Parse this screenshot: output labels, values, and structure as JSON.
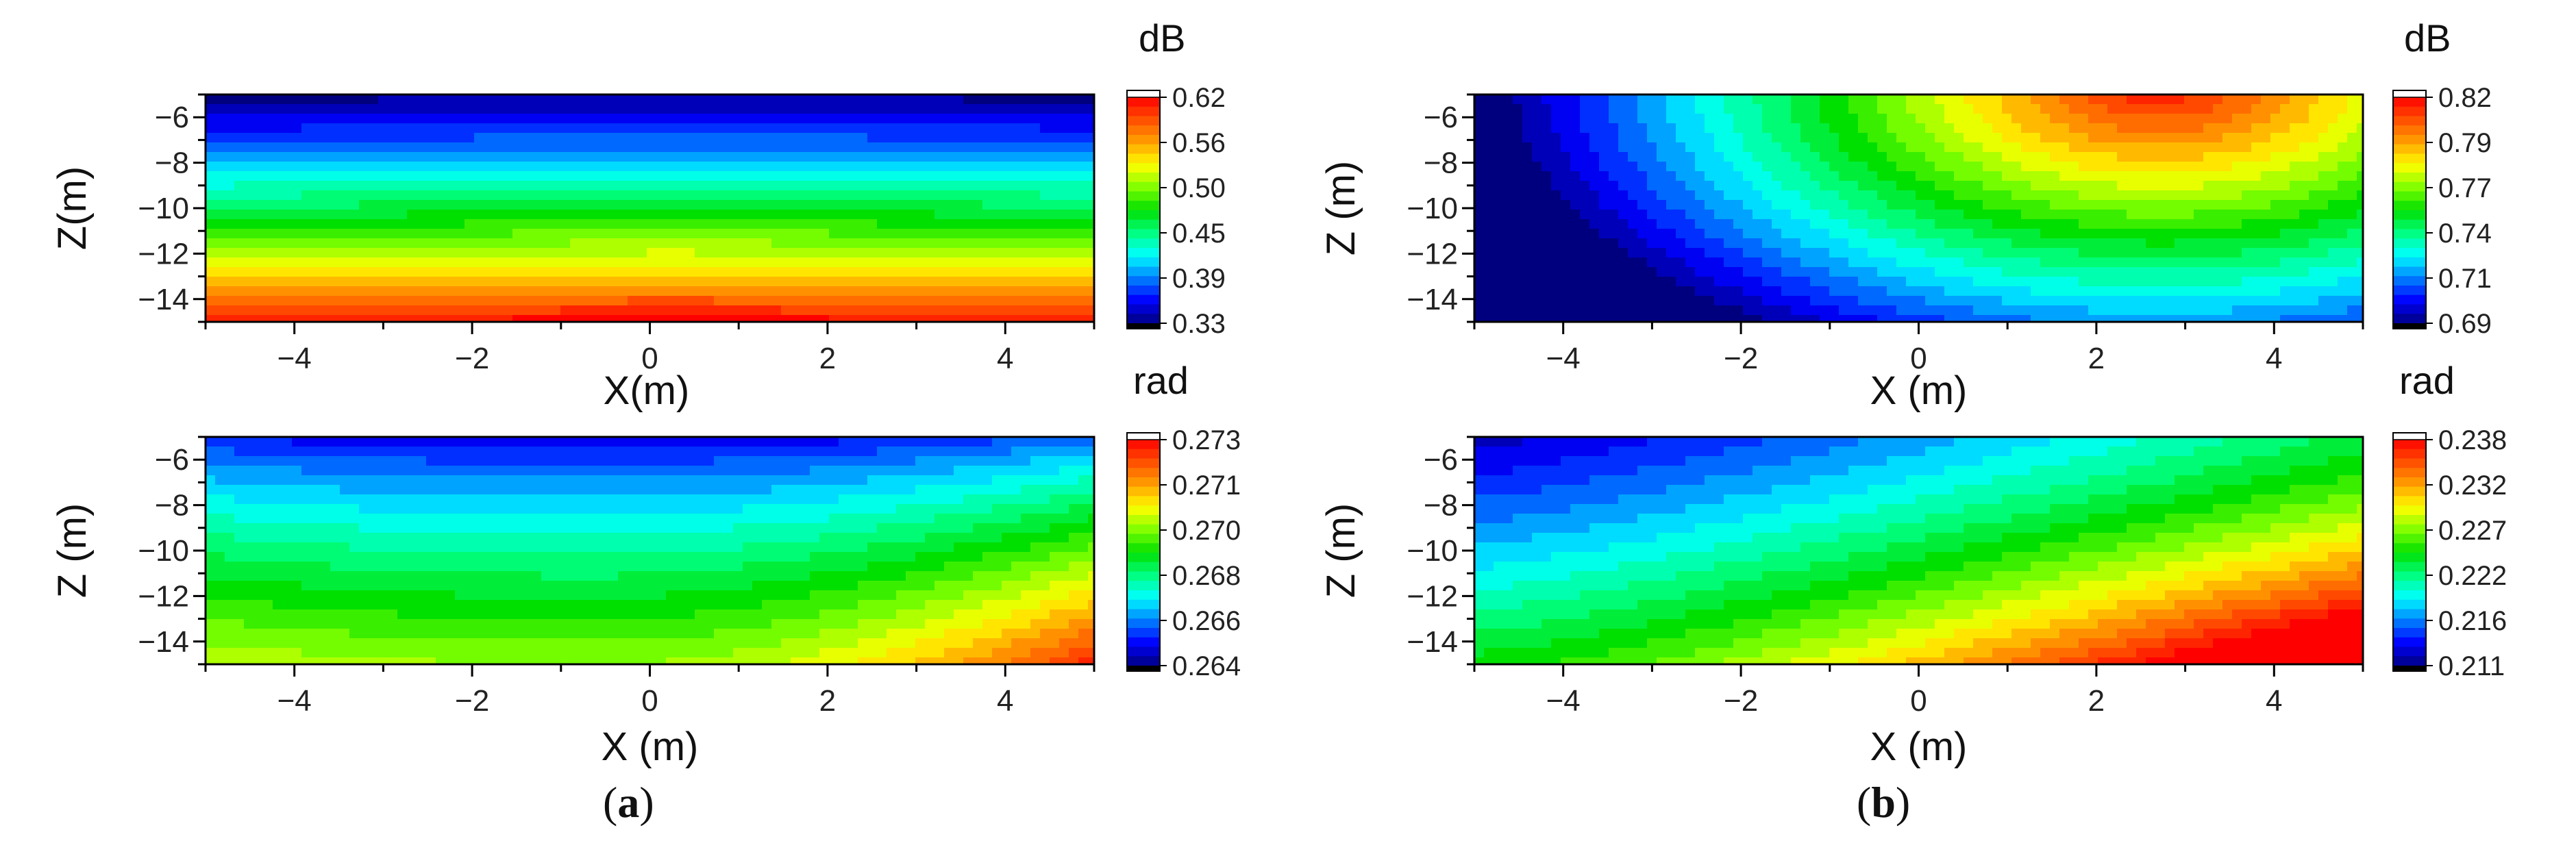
{
  "captions": {
    "a_open": "(",
    "a_letter": "a",
    "a_close": ")",
    "b_open": "(",
    "b_letter": "b",
    "b_close": ")"
  },
  "colors": {
    "jet_stops": [
      "#00007f",
      "#0000ff",
      "#0080ff",
      "#00ffff",
      "#00ff80",
      "#00e000",
      "#80ff00",
      "#ffff00",
      "#ffa000",
      "#ff5000",
      "#ff0000"
    ],
    "axis": "#000000"
  },
  "chart_data": [
    {
      "type": "heatmap",
      "panel": "a-top",
      "xlabel": "X(m)",
      "ylabel": "Z(m)",
      "unit": "dB",
      "xlim": [
        -5,
        5
      ],
      "ylim": [
        -15,
        -5
      ],
      "x_ticks": [
        "-4",
        "-2",
        "0",
        "2",
        "4"
      ],
      "y_ticks": [
        "-6",
        "-8",
        "-10",
        "-12",
        "-14"
      ],
      "colorbar": {
        "ticks": [
          "0.62",
          "0.56",
          "0.50",
          "0.45",
          "0.39",
          "0.33"
        ],
        "min": 0.33,
        "max": 0.62
      },
      "field": {
        "pattern": "horizontal bands increasing with depth",
        "top_value": 0.33,
        "bottom_value": 0.62
      }
    },
    {
      "type": "heatmap",
      "panel": "a-bottom",
      "xlabel": "X (m)",
      "ylabel": "Z (m)",
      "unit": "rad",
      "xlim": [
        -5,
        5
      ],
      "ylim": [
        -15,
        -5
      ],
      "x_ticks": [
        "-4",
        "-2",
        "0",
        "2",
        "4"
      ],
      "y_ticks": [
        "-6",
        "-8",
        "-10",
        "-12",
        "-14"
      ],
      "colorbar": {
        "ticks": [
          "0.273",
          "0.271",
          "0.270",
          "0.268",
          "0.266",
          "0.264"
        ],
        "min": 0.264,
        "max": 0.273
      },
      "field": {
        "pattern": "minimum near top at x≈-0.7, maximum at bottom-right corner",
        "min_value": 0.264,
        "max_value": 0.273
      }
    },
    {
      "type": "heatmap",
      "panel": "b-top",
      "xlabel": "X (m)",
      "ylabel": "Z (m)",
      "unit": "dB",
      "xlim": [
        -5,
        5
      ],
      "ylim": [
        -15,
        -5
      ],
      "x_ticks": [
        "-4",
        "-2",
        "0",
        "2",
        "4"
      ],
      "y_ticks": [
        "-6",
        "-8",
        "-10",
        "-12",
        "-14"
      ],
      "colorbar": {
        "ticks": [
          "0.82",
          "0.79",
          "0.77",
          "0.74",
          "0.71",
          "0.69"
        ],
        "min": 0.69,
        "max": 0.82
      },
      "field": {
        "pattern": "maximum near top at x≈2.5, minimum at left edge",
        "min_value": 0.69,
        "max_value": 0.82
      }
    },
    {
      "type": "heatmap",
      "panel": "b-bottom",
      "xlabel": "X (m)",
      "ylabel": "Z (m)",
      "unit": "rad",
      "xlim": [
        -5,
        5
      ],
      "ylim": [
        -15,
        -5
      ],
      "x_ticks": [
        "-4",
        "-2",
        "0",
        "2",
        "4"
      ],
      "y_ticks": [
        "-6",
        "-8",
        "-10",
        "-12",
        "-14"
      ],
      "colorbar": {
        "ticks": [
          "0.238",
          "0.232",
          "0.227",
          "0.222",
          "0.216",
          "0.211"
        ],
        "min": 0.211,
        "max": 0.238
      },
      "field": {
        "pattern": "minimum at top-left, maximum at bottom-right corner",
        "min_value": 0.211,
        "max_value": 0.238
      }
    }
  ]
}
